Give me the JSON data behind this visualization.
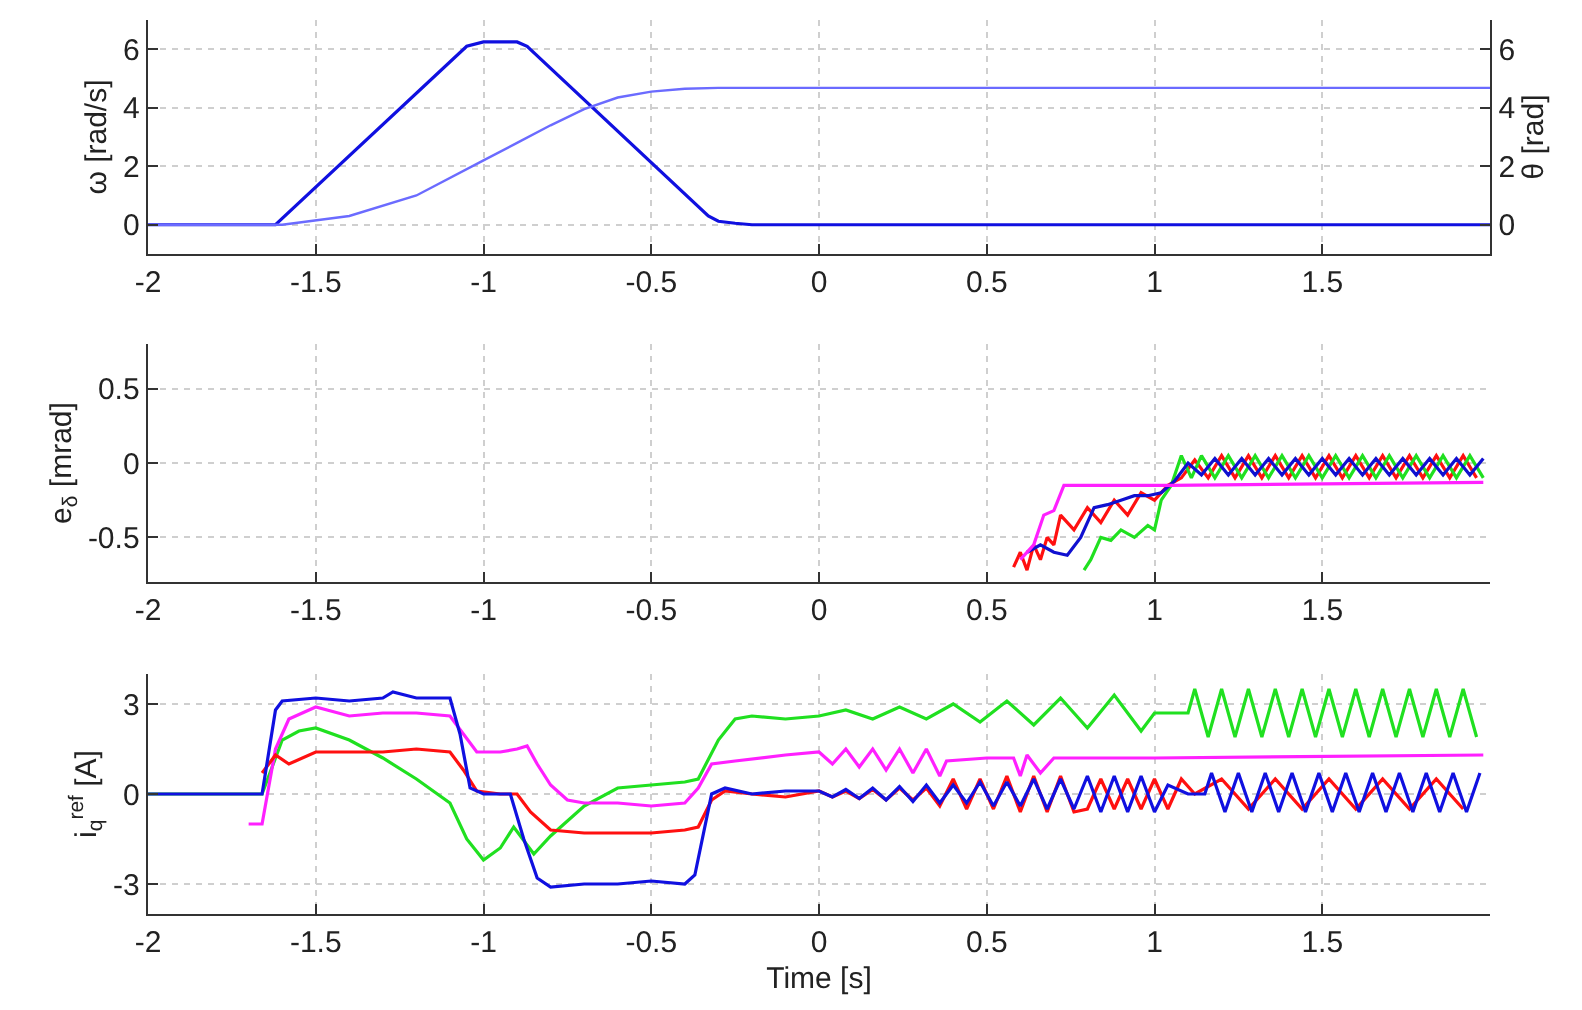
{
  "chart_data": [
    {
      "type": "line",
      "ylabel": "ω [rad/s]",
      "y2label": "θ [rad]",
      "xlim": [
        -2,
        2
      ],
      "xticks": [
        -2,
        -1.5,
        -1,
        -0.5,
        0,
        0.5,
        1,
        1.5
      ],
      "ylim": [
        -1,
        7
      ],
      "yticks": [
        0,
        2,
        4,
        6
      ],
      "y2lim": [
        -1,
        7
      ],
      "y2ticks": [
        0,
        2,
        4,
        6
      ],
      "grid": true,
      "series": [
        {
          "color": "#1010e0",
          "x": [
            -2,
            -1.62,
            -1.05,
            -1.0,
            -0.9,
            -0.87,
            -0.33,
            -0.3,
            -0.25,
            -0.2,
            2
          ],
          "values": [
            0,
            0,
            6.1,
            6.25,
            6.25,
            6.1,
            0.3,
            0.12,
            0.05,
            0,
            0
          ]
        },
        {
          "color": "#6b6bff",
          "axis": "y2",
          "x": [
            -2,
            -1.6,
            -1.4,
            -1.2,
            -1.0,
            -0.9,
            -0.8,
            -0.7,
            -0.6,
            -0.5,
            -0.4,
            -0.3,
            2
          ],
          "values": [
            0,
            0,
            0.3,
            1.0,
            2.2,
            2.8,
            3.4,
            3.95,
            4.35,
            4.55,
            4.65,
            4.68,
            4.68
          ]
        }
      ]
    },
    {
      "type": "line",
      "ylabel": "e$_{δ}$ [mrad]",
      "xlim": [
        -2,
        2
      ],
      "xticks": [
        -2,
        -1.5,
        -1,
        -0.5,
        0,
        0.5,
        1,
        1.5
      ],
      "ylim": [
        -0.8,
        0.8
      ],
      "yticks": [
        -0.5,
        0,
        0.5
      ],
      "grid": true,
      "series": [
        {
          "color": "#ff1010",
          "x": [
            0.58,
            0.6,
            0.62,
            0.64,
            0.66,
            0.68,
            0.7,
            0.72,
            0.76,
            0.8,
            0.84,
            0.88,
            0.92,
            0.96,
            1.0,
            1.04,
            1.08,
            1.12,
            1.16,
            1.2,
            1.24,
            1.28,
            1.32,
            1.36,
            1.4,
            1.44,
            1.48,
            1.52,
            1.56,
            1.6,
            1.64,
            1.68,
            1.72,
            1.76,
            1.8,
            1.84,
            1.88,
            1.92,
            1.96
          ],
          "values": [
            -0.7,
            -0.6,
            -0.72,
            -0.55,
            -0.65,
            -0.5,
            -0.55,
            -0.35,
            -0.45,
            -0.3,
            -0.4,
            -0.25,
            -0.35,
            -0.2,
            -0.25,
            -0.15,
            -0.1,
            0.02,
            -0.1,
            0.05,
            -0.1,
            0.05,
            -0.1,
            0.05,
            -0.1,
            0.05,
            -0.1,
            0.05,
            -0.1,
            0.05,
            -0.1,
            0.05,
            -0.1,
            0.05,
            -0.1,
            0.05,
            -0.1,
            0.05,
            -0.1
          ]
        },
        {
          "color": "#20e020",
          "x": [
            0.79,
            0.81,
            0.84,
            0.87,
            0.9,
            0.94,
            0.98,
            1.0,
            1.02,
            1.05,
            1.08,
            1.11,
            1.14,
            1.18,
            1.22,
            1.26,
            1.3,
            1.34,
            1.38,
            1.42,
            1.46,
            1.5,
            1.54,
            1.58,
            1.62,
            1.66,
            1.7,
            1.74,
            1.78,
            1.82,
            1.86,
            1.9,
            1.94,
            1.98
          ],
          "values": [
            -0.72,
            -0.65,
            -0.5,
            -0.52,
            -0.45,
            -0.5,
            -0.42,
            -0.45,
            -0.25,
            -0.15,
            0.05,
            -0.1,
            0.05,
            -0.1,
            0.05,
            -0.1,
            0.05,
            -0.1,
            0.05,
            -0.1,
            0.05,
            -0.1,
            0.05,
            -0.1,
            0.05,
            -0.1,
            0.05,
            -0.1,
            0.05,
            -0.1,
            0.05,
            -0.1,
            0.05,
            -0.1
          ]
        },
        {
          "color": "#1010d0",
          "x": [
            0.62,
            0.66,
            0.7,
            0.74,
            0.78,
            0.82,
            0.86,
            0.9,
            0.94,
            0.98,
            1.02,
            1.06,
            1.1,
            1.14,
            1.18,
            1.22,
            1.26,
            1.3,
            1.34,
            1.38,
            1.42,
            1.46,
            1.5,
            1.54,
            1.58,
            1.62,
            1.66,
            1.7,
            1.74,
            1.78,
            1.82,
            1.86,
            1.9,
            1.94,
            1.98
          ],
          "values": [
            -0.6,
            -0.55,
            -0.6,
            -0.62,
            -0.5,
            -0.3,
            -0.28,
            -0.25,
            -0.22,
            -0.22,
            -0.2,
            -0.12,
            0.0,
            -0.08,
            0.03,
            -0.08,
            0.03,
            -0.08,
            0.03,
            -0.08,
            0.03,
            -0.08,
            0.03,
            -0.08,
            0.03,
            -0.08,
            0.03,
            -0.08,
            0.03,
            -0.08,
            0.03,
            -0.08,
            0.03,
            -0.08,
            0.03
          ]
        },
        {
          "color": "#ff20ff",
          "x": [
            0.6,
            0.64,
            0.67,
            0.7,
            0.73,
            1.05,
            1.98
          ],
          "values": [
            -0.65,
            -0.55,
            -0.35,
            -0.32,
            -0.15,
            -0.15,
            -0.13
          ]
        }
      ]
    },
    {
      "type": "line",
      "ylabel": "i$_{q}$$^{ref}$ [A]",
      "xlabel": "Time [s]",
      "xlim": [
        -2,
        2
      ],
      "xticks": [
        -2,
        -1.5,
        -1,
        -0.5,
        0,
        0.5,
        1,
        1.5
      ],
      "ylim": [
        -4,
        4
      ],
      "yticks": [
        -3,
        0,
        3
      ],
      "grid": true,
      "series": [
        {
          "color": "#20e020",
          "x": [
            -2,
            -1.66,
            -1.6,
            -1.55,
            -1.5,
            -1.4,
            -1.3,
            -1.2,
            -1.1,
            -1.05,
            -1.0,
            -0.95,
            -0.91,
            -0.85,
            -0.8,
            -0.7,
            -0.6,
            -0.5,
            -0.4,
            -0.36,
            -0.3,
            -0.25,
            -0.2,
            -0.1,
            0,
            0.08,
            0.16,
            0.24,
            0.32,
            0.4,
            0.48,
            0.56,
            0.64,
            0.72,
            0.8,
            0.88,
            0.96,
            1.0,
            1.06,
            1.1,
            1.12,
            1.16,
            1.2,
            1.24,
            1.28,
            1.32,
            1.36,
            1.4,
            1.44,
            1.48,
            1.52,
            1.56,
            1.6,
            1.64,
            1.68,
            1.72,
            1.76,
            1.8,
            1.84,
            1.88,
            1.92,
            1.96
          ],
          "values": [
            0,
            0,
            1.8,
            2.1,
            2.2,
            1.8,
            1.2,
            0.5,
            -0.3,
            -1.5,
            -2.2,
            -1.8,
            -1.1,
            -2.0,
            -1.4,
            -0.4,
            0.2,
            0.3,
            0.4,
            0.5,
            1.8,
            2.5,
            2.6,
            2.5,
            2.6,
            2.8,
            2.5,
            2.9,
            2.5,
            3.0,
            2.4,
            3.1,
            2.3,
            3.2,
            2.2,
            3.3,
            2.1,
            2.7,
            2.7,
            2.7,
            3.5,
            1.9,
            3.5,
            1.9,
            3.5,
            1.9,
            3.5,
            1.9,
            3.5,
            1.9,
            3.5,
            1.9,
            3.5,
            1.9,
            3.5,
            1.9,
            3.5,
            1.9,
            3.5,
            1.9,
            3.5,
            1.9
          ]
        },
        {
          "color": "#ff20ff",
          "x": [
            -1.7,
            -1.66,
            -1.62,
            -1.58,
            -1.5,
            -1.4,
            -1.3,
            -1.2,
            -1.1,
            -1.06,
            -1.02,
            -0.95,
            -0.9,
            -0.87,
            -0.84,
            -0.8,
            -0.75,
            -0.7,
            -0.6,
            -0.5,
            -0.4,
            -0.36,
            -0.32,
            -0.25,
            -0.1,
            0,
            0.04,
            0.08,
            0.12,
            0.16,
            0.2,
            0.24,
            0.28,
            0.32,
            0.36,
            0.38,
            0.5,
            0.58,
            0.6,
            0.62,
            0.66,
            0.7,
            1.0,
            1.98
          ],
          "values": [
            -1.0,
            -1.0,
            1.5,
            2.5,
            2.9,
            2.6,
            2.7,
            2.7,
            2.6,
            2.0,
            1.4,
            1.4,
            1.5,
            1.6,
            1.0,
            0.3,
            -0.2,
            -0.3,
            -0.3,
            -0.4,
            -0.3,
            0.2,
            1.0,
            1.1,
            1.3,
            1.4,
            1.0,
            1.5,
            0.9,
            1.5,
            0.8,
            1.5,
            0.7,
            1.5,
            0.6,
            1.1,
            1.2,
            1.2,
            0.6,
            1.3,
            0.7,
            1.2,
            1.2,
            1.3
          ]
        },
        {
          "color": "#ff1010",
          "x": [
            -1.66,
            -1.62,
            -1.58,
            -1.5,
            -1.4,
            -1.3,
            -1.2,
            -1.1,
            -1.06,
            -1.02,
            -0.95,
            -0.9,
            -0.86,
            -0.8,
            -0.7,
            -0.6,
            -0.5,
            -0.4,
            -0.36,
            -0.32,
            -0.28,
            -0.2,
            -0.1,
            0,
            0.04,
            0.08,
            0.12,
            0.16,
            0.2,
            0.24,
            0.28,
            0.32,
            0.36,
            0.4,
            0.44,
            0.48,
            0.52,
            0.56,
            0.6,
            0.64,
            0.68,
            0.72,
            0.76,
            0.8,
            0.84,
            0.88,
            0.92,
            0.96,
            1.0,
            1.04,
            1.08,
            1.12,
            1.2,
            1.28,
            1.36,
            1.44,
            1.52,
            1.6,
            1.68,
            1.76,
            1.84,
            1.92
          ],
          "values": [
            0.7,
            1.3,
            1.0,
            1.4,
            1.4,
            1.4,
            1.5,
            1.4,
            0.8,
            0.1,
            0,
            0,
            -0.6,
            -1.2,
            -1.3,
            -1.3,
            -1.3,
            -1.2,
            -1.1,
            -0.2,
            0.1,
            0,
            -0.1,
            0.1,
            -0.1,
            0.1,
            -0.15,
            0.15,
            -0.2,
            0.2,
            -0.2,
            0.2,
            -0.4,
            0.5,
            -0.5,
            0.5,
            -0.5,
            0.6,
            -0.6,
            0.6,
            -0.6,
            0.6,
            -0.6,
            -0.5,
            0.5,
            -0.5,
            0.5,
            -0.5,
            0.5,
            -0.5,
            0.5,
            0,
            0.5,
            -0.5,
            0.5,
            -0.5,
            0.5,
            -0.5,
            0.5,
            -0.5,
            0.5,
            -0.5
          ]
        },
        {
          "color": "#1010e0",
          "x": [
            -2,
            -1.66,
            -1.62,
            -1.6,
            -1.5,
            -1.4,
            -1.3,
            -1.27,
            -1.2,
            -1.1,
            -1.07,
            -1.04,
            -1.0,
            -0.92,
            -0.88,
            -0.84,
            -0.8,
            -0.7,
            -0.6,
            -0.5,
            -0.4,
            -0.37,
            -0.32,
            -0.28,
            -0.2,
            -0.1,
            0,
            0.04,
            0.08,
            0.12,
            0.16,
            0.2,
            0.24,
            0.28,
            0.32,
            0.36,
            0.4,
            0.44,
            0.48,
            0.52,
            0.56,
            0.6,
            0.64,
            0.68,
            0.72,
            0.76,
            0.8,
            0.84,
            0.88,
            0.92,
            0.96,
            1.0,
            1.04,
            1.1,
            1.15,
            1.17,
            1.21,
            1.25,
            1.29,
            1.33,
            1.37,
            1.41,
            1.45,
            1.49,
            1.53,
            1.57,
            1.61,
            1.65,
            1.69,
            1.73,
            1.77,
            1.81,
            1.85,
            1.89,
            1.93,
            1.97
          ],
          "values": [
            0,
            0,
            2.8,
            3.1,
            3.2,
            3.1,
            3.2,
            3.4,
            3.2,
            3.2,
            2.0,
            0.2,
            0,
            0,
            -1.5,
            -2.8,
            -3.1,
            -3.0,
            -3.0,
            -2.9,
            -3.0,
            -2.7,
            0,
            0.2,
            0,
            0.1,
            0.1,
            -0.1,
            0.15,
            -0.15,
            0.2,
            -0.2,
            0.25,
            -0.25,
            0.3,
            -0.3,
            0.3,
            -0.3,
            0.4,
            -0.4,
            0.4,
            -0.4,
            0.5,
            -0.5,
            0.5,
            -0.5,
            0.6,
            -0.6,
            0.6,
            -0.6,
            0.6,
            -0.6,
            0.3,
            0,
            0,
            0.7,
            -0.6,
            0.7,
            -0.6,
            0.7,
            -0.6,
            0.7,
            -0.6,
            0.7,
            -0.6,
            0.7,
            -0.6,
            0.7,
            -0.6,
            0.7,
            -0.6,
            0.7,
            -0.6,
            0.7,
            -0.6,
            0.7
          ]
        }
      ]
    }
  ]
}
